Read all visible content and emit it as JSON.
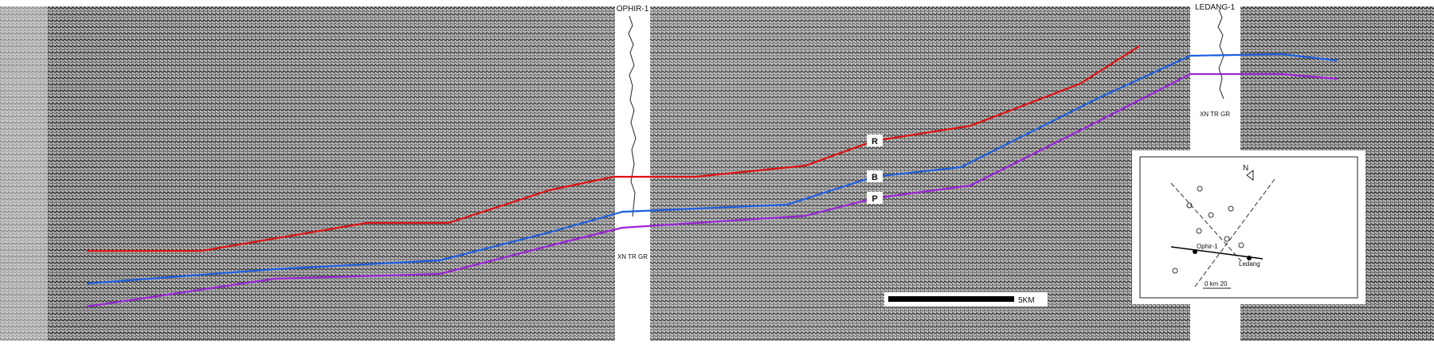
{
  "wells": [
    {
      "name": "OPHIR-1",
      "logs": "XN TR GR"
    },
    {
      "name": "LEDANG-1",
      "logs": "XN TR GR"
    }
  ],
  "horizons": [
    {
      "label": "R"
    },
    {
      "label": "B"
    },
    {
      "label": "P"
    }
  ],
  "scale_bar": "5KM",
  "location_map": {
    "north": "N",
    "wells": [
      "Ophir-1",
      "Ledang"
    ],
    "scale": "0 km 20"
  }
}
